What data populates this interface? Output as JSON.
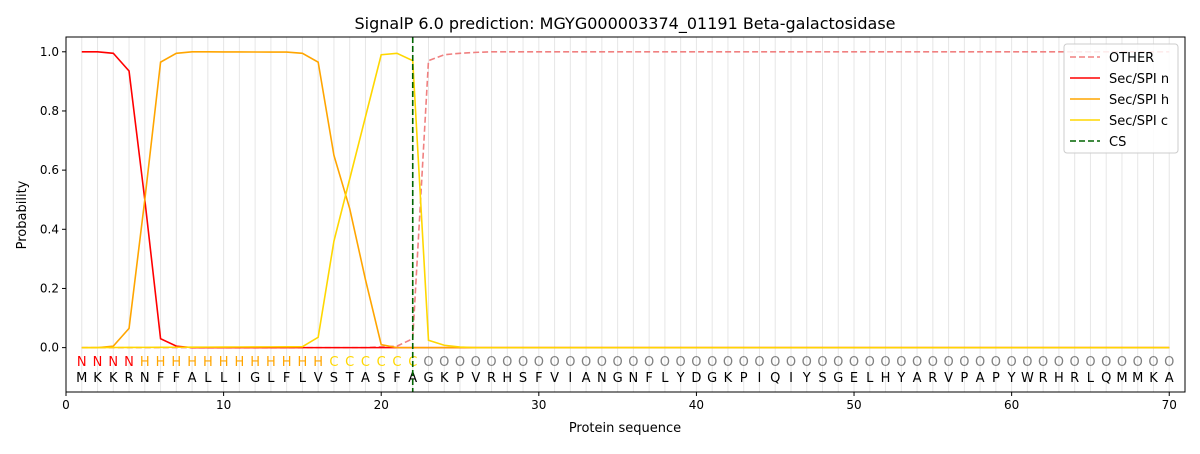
{
  "chart_data": {
    "type": "line",
    "title": "SignalP 6.0 prediction: MGYG000003374_01191 Beta-galactosidase",
    "xlabel": "Protein sequence",
    "ylabel": "Probability",
    "xlim": [
      0,
      71
    ],
    "ylim": [
      -0.15,
      1.05
    ],
    "xticks": [
      0,
      10,
      20,
      30,
      40,
      50,
      60,
      70
    ],
    "yticks": [
      "0.0",
      "0.2",
      "0.4",
      "0.6",
      "0.8",
      "1.0"
    ],
    "legend_position": "top-right",
    "sequence": [
      "M",
      "K",
      "K",
      "R",
      "N",
      "F",
      "F",
      "A",
      "L",
      "L",
      "I",
      "G",
      "L",
      "F",
      "L",
      "V",
      "S",
      "T",
      "A",
      "S",
      "F",
      "A",
      "G",
      "K",
      "P",
      "V",
      "R",
      "H",
      "S",
      "F",
      "V",
      "I",
      "A",
      "N",
      "G",
      "N",
      "F",
      "L",
      "Y",
      "D",
      "G",
      "K",
      "P",
      "I",
      "Q",
      "I",
      "Y",
      "S",
      "G",
      "E",
      "L",
      "H",
      "Y",
      "A",
      "R",
      "V",
      "P",
      "A",
      "P",
      "Y",
      "W",
      "R",
      "H",
      "R",
      "L",
      "Q",
      "M",
      "M",
      "K",
      "A"
    ],
    "labels": [
      "N",
      "N",
      "N",
      "N",
      "H",
      "H",
      "H",
      "H",
      "H",
      "H",
      "H",
      "H",
      "H",
      "H",
      "H",
      "H",
      "C",
      "C",
      "C",
      "C",
      "C",
      "C",
      "O",
      "O",
      "O",
      "O",
      "O",
      "O",
      "O",
      "O",
      "O",
      "O",
      "O",
      "O",
      "O",
      "O",
      "O",
      "O",
      "O",
      "O",
      "O",
      "O",
      "O",
      "O",
      "O",
      "O",
      "O",
      "O",
      "O",
      "O",
      "O",
      "O",
      "O",
      "O",
      "O",
      "O",
      "O",
      "O",
      "O",
      "O",
      "O",
      "O",
      "O",
      "O",
      "O",
      "O",
      "O",
      "O",
      "O",
      "O"
    ],
    "label_colors": {
      "N": "#ff0000",
      "H": "#ffa500",
      "C": "#ffd700",
      "O": "#808080"
    },
    "series": [
      {
        "name": "OTHER",
        "color": "#f08080",
        "dash": true,
        "points": {
          "1": 0,
          "19": 0,
          "20": 0.003,
          "21": 0.005,
          "22": 0.03,
          "23": 0.97,
          "24": 0.99,
          "25": 0.995,
          "26": 0.998,
          "27": 1,
          "70": 1
        }
      },
      {
        "name": "Sec/SPI n",
        "color": "#ff0000",
        "dash": false,
        "points": {
          "1": 1,
          "2": 1,
          "3": 0.995,
          "4": 0.935,
          "5": 0.5,
          "6": 0.03,
          "7": 0.005,
          "8": 0,
          "70": 0
        }
      },
      {
        "name": "Sec/SPI h",
        "color": "#ffa500",
        "dash": false,
        "points": {
          "1": 0,
          "2": 0,
          "3": 0.005,
          "4": 0.065,
          "5": 0.5,
          "6": 0.965,
          "7": 0.995,
          "8": 1,
          "14": 0.999,
          "15": 0.995,
          "16": 0.965,
          "17": 0.65,
          "18": 0.47,
          "19": 0.23,
          "20": 0.01,
          "21": 0,
          "70": 0
        }
      },
      {
        "name": "Sec/SPI c",
        "color": "#ffd700",
        "dash": false,
        "points": {
          "1": 0,
          "15": 0.003,
          "16": 0.035,
          "17": 0.36,
          "18": 0.57,
          "19": 0.78,
          "20": 0.99,
          "21": 0.995,
          "22": 0.97,
          "23": 0.025,
          "24": 0.008,
          "25": 0.002,
          "26": 0,
          "70": 0
        }
      }
    ],
    "cs": {
      "name": "CS",
      "position": 22,
      "color": "#006400"
    }
  }
}
